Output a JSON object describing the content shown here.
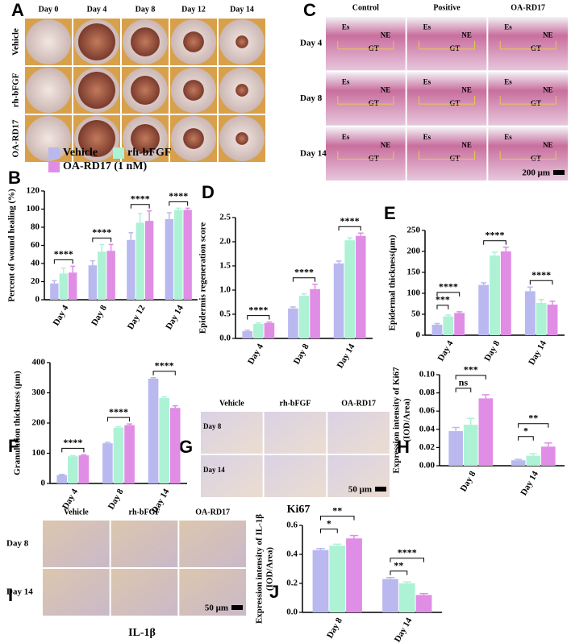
{
  "chart_data": [
    {
      "type": "bar",
      "panel_label": "B",
      "ylabel": [
        "Percent of wound healing (%)"
      ],
      "categories": [
        "Day 4",
        "Day 8",
        "Day 12",
        "Day 14"
      ],
      "series": [
        {
          "name": "Vehicle",
          "color": "#b9b9f0",
          "values": [
            18,
            38,
            66,
            89
          ],
          "errors": [
            3,
            5,
            8,
            7
          ]
        },
        {
          "name": "rh-bFGF",
          "color": "#aef2d6",
          "values": [
            29,
            53,
            85,
            99
          ],
          "errors": [
            6,
            8,
            10,
            2
          ]
        },
        {
          "name": "OA-RD17 (1 nM)",
          "color": "#e08de6",
          "values": [
            30,
            54,
            87,
            99
          ],
          "errors": [
            7,
            7,
            11,
            2
          ]
        }
      ],
      "significance": [
        [
          "****"
        ],
        [
          "****"
        ],
        [
          "****"
        ],
        [
          "****"
        ]
      ],
      "ylim": [
        0,
        120
      ],
      "yticks": [
        0,
        20,
        40,
        60,
        80,
        100,
        120
      ]
    },
    {
      "type": "bar",
      "panel_label": "D",
      "ylabel": [
        "Epidermis regeneration score"
      ],
      "categories": [
        "Day 4",
        "Day 8",
        "Day 14"
      ],
      "series": [
        {
          "color": "#b9b9f0",
          "values": [
            0.15,
            0.62,
            1.55
          ],
          "errors": [
            0.02,
            0.03,
            0.05
          ]
        },
        {
          "color": "#aef2d6",
          "values": [
            0.3,
            0.88,
            2.03
          ],
          "errors": [
            0.02,
            0.04,
            0.05
          ]
        },
        {
          "color": "#e08de6",
          "values": [
            0.32,
            1.02,
            2.12
          ],
          "errors": [
            0.02,
            0.1,
            0.06
          ]
        }
      ],
      "significance": [
        [
          "****"
        ],
        [
          "****"
        ],
        [
          "****"
        ]
      ],
      "ylim": [
        0,
        2.5
      ],
      "yticks": [
        {
          "value": 0,
          "label": "0.0"
        },
        0.5,
        {
          "value": 1,
          "label": "1.0"
        },
        1.5,
        {
          "value": 2,
          "label": "2.0"
        },
        2.5
      ]
    },
    {
      "type": "bar",
      "panel_label": "E",
      "ylabel": [
        "Epidermal thickness(μm)"
      ],
      "categories": [
        "Day 4",
        "Day 8",
        "Day 14"
      ],
      "series": [
        {
          "color": "#b9b9f0",
          "values": [
            25,
            120,
            105
          ],
          "errors": [
            3,
            5,
            10
          ]
        },
        {
          "color": "#aef2d6",
          "values": [
            45,
            190,
            77
          ],
          "errors": [
            3,
            8,
            8
          ]
        },
        {
          "color": "#e08de6",
          "values": [
            53,
            200,
            73
          ],
          "errors": [
            3,
            10,
            8
          ]
        }
      ],
      "significance": [
        [
          "***",
          "****"
        ],
        [
          "****"
        ],
        [
          "****"
        ]
      ],
      "ylim": [
        0,
        250
      ],
      "yticks": [
        0,
        50,
        100,
        150,
        200,
        250
      ]
    },
    {
      "type": "bar",
      "panel_label": "F",
      "ylabel": [
        "Granulation thickness (μm)"
      ],
      "categories": [
        "Day 4",
        "Day 8",
        "Day 14"
      ],
      "series": [
        {
          "color": "#b9b9f0",
          "values": [
            28,
            133,
            347
          ],
          "errors": [
            2,
            3,
            3
          ]
        },
        {
          "color": "#aef2d6",
          "values": [
            90,
            185,
            283
          ],
          "errors": [
            2,
            3,
            4
          ]
        },
        {
          "color": "#e08de6",
          "values": [
            93,
            193,
            250
          ],
          "errors": [
            2,
            4,
            7
          ]
        }
      ],
      "significance": [
        [
          "****"
        ],
        [
          "****"
        ],
        [
          "****"
        ]
      ],
      "ylim": [
        0,
        400
      ],
      "yticks": [
        0,
        100,
        200,
        300,
        400
      ]
    },
    {
      "type": "bar",
      "panel_label": "H",
      "ylabel": [
        "Expression intensity of Ki67",
        "(IOD/Area)"
      ],
      "categories": [
        "Day 8",
        "Day 14"
      ],
      "series": [
        {
          "color": "#b9b9f0",
          "values": [
            0.038,
            0.006
          ],
          "errors": [
            0.004,
            0.001
          ]
        },
        {
          "color": "#aef2d6",
          "values": [
            0.045,
            0.011
          ],
          "errors": [
            0.007,
            0.002
          ]
        },
        {
          "color": "#e08de6",
          "values": [
            0.074,
            0.021
          ],
          "errors": [
            0.004,
            0.004
          ]
        }
      ],
      "significance": [
        [
          "ns",
          "***"
        ],
        [
          "*",
          "**"
        ]
      ],
      "ylim": [
        0,
        0.1
      ],
      "yticks": [
        {
          "value": 0,
          "label": "0.00"
        },
        0.02,
        0.04,
        0.06,
        0.08,
        {
          "value": 0.1,
          "label": "0.10"
        }
      ]
    },
    {
      "type": "bar",
      "panel_label": "J",
      "ylabel": [
        "Expression intensity of IL-1β",
        "(IOD/Area)"
      ],
      "categories": [
        "Day 8",
        "Day 14"
      ],
      "series": [
        {
          "color": "#b9b9f0",
          "values": [
            0.43,
            0.23
          ],
          "errors": [
            0.01,
            0.01
          ]
        },
        {
          "color": "#aef2d6",
          "values": [
            0.46,
            0.2
          ],
          "errors": [
            0.01,
            0.01
          ]
        },
        {
          "color": "#e08de6",
          "values": [
            0.51,
            0.12
          ],
          "errors": [
            0.02,
            0.01
          ]
        }
      ],
      "significance": [
        [
          "*",
          "**"
        ],
        [
          "**",
          "****"
        ]
      ],
      "ylim": [
        0,
        0.6
      ],
      "yticks": [
        {
          "value": 0,
          "label": "0.0"
        },
        0.2,
        0.4,
        0.6
      ]
    }
  ],
  "image_panels": [
    {
      "panel_label": "A",
      "columns": [
        "Day 0",
        "Day 4",
        "Day 8",
        "Day 12",
        "Day 14"
      ],
      "rows": [
        "Vehicle",
        "rh-bFGF",
        "OA-RD17"
      ]
    },
    {
      "panel_label": "C",
      "columns": [
        "Control",
        "Positive",
        "OA-RD17"
      ],
      "rows": [
        "Day 4",
        "Day 8",
        "Day 14"
      ],
      "annotations": [
        "Es",
        "NE",
        "GT"
      ],
      "scale_bar": "200 μm"
    },
    {
      "panel_label": "G",
      "columns": [
        "Vehicle",
        "rh-bFGF",
        "OA-RD17"
      ],
      "rows": [
        "Day 8",
        "Day 14"
      ],
      "scale_bar": "50 μm",
      "caption": "Ki67"
    },
    {
      "panel_label": "I",
      "columns": [
        "Vehicle",
        "rh-bFGF",
        "OA-RD17"
      ],
      "rows": [
        "Day 8",
        "Day 14"
      ],
      "scale_bar": "50 μm",
      "caption": "IL-1β"
    }
  ]
}
